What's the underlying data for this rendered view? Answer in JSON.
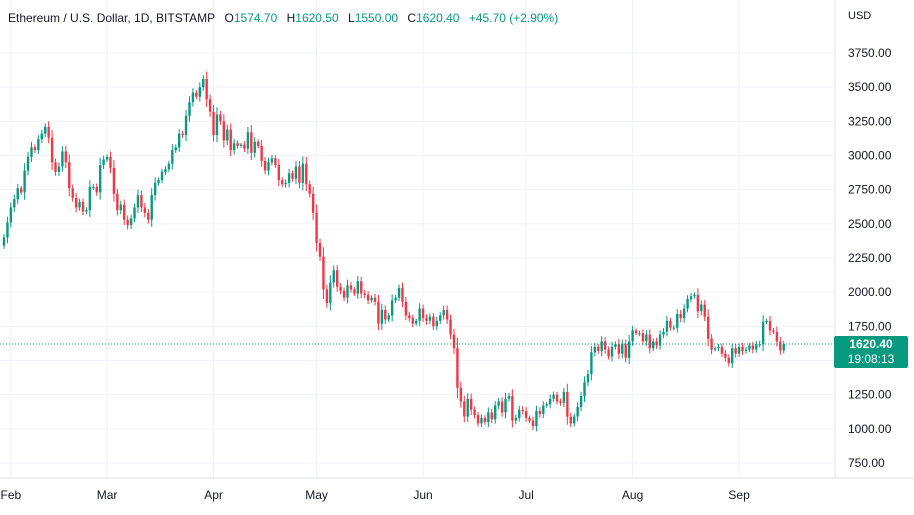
{
  "legend": {
    "symbol": "Ethereum / U.S. Dollar, 1D, BITSTAMP",
    "open_label": "O",
    "open": "1574.70",
    "high_label": "H",
    "high": "1620.50",
    "low_label": "L",
    "low": "1550.00",
    "close_label": "C",
    "close": "1620.40",
    "change": "+45.70 (+2.90%)"
  },
  "axis": {
    "currency": "USD"
  },
  "price_tag": {
    "price": "1620.40",
    "countdown": "19:08:13"
  },
  "colors": {
    "up": "#089981",
    "down": "#f23645",
    "grid": "#f0f3fa",
    "text": "#131722"
  },
  "chart_data": {
    "type": "candlestick",
    "y_ticks": [
      "750.00",
      "1000.00",
      "1250.00",
      "1500.00",
      "1750.00",
      "2000.00",
      "2250.00",
      "2500.00",
      "2750.00",
      "3000.00",
      "3250.00",
      "3500.00",
      "3750.00"
    ],
    "x_ticks": [
      {
        "label": "Feb",
        "index": 2
      },
      {
        "label": "Mar",
        "index": 30
      },
      {
        "label": "Apr",
        "index": 61
      },
      {
        "label": "May",
        "index": 91
      },
      {
        "label": "Jun",
        "index": 122
      },
      {
        "label": "Jul",
        "index": 152
      },
      {
        "label": "Aug",
        "index": 183
      },
      {
        "label": "Sep",
        "index": 214
      }
    ],
    "ylim": [
      600,
      3900
    ],
    "last_price": 1620.4,
    "close": [
      2400,
      2510,
      2620,
      2680,
      2760,
      2730,
      2890,
      2990,
      3060,
      3040,
      3120,
      3160,
      3210,
      3130,
      2950,
      2880,
      2920,
      3030,
      2950,
      2760,
      2690,
      2620,
      2660,
      2590,
      2600,
      2770,
      2770,
      2730,
      2930,
      2970,
      2990,
      2910,
      2720,
      2600,
      2640,
      2530,
      2490,
      2540,
      2620,
      2710,
      2620,
      2580,
      2530,
      2710,
      2800,
      2820,
      2880,
      2900,
      2940,
      3040,
      3060,
      3160,
      3150,
      3290,
      3390,
      3460,
      3430,
      3500,
      3560,
      3410,
      3320,
      3150,
      3300,
      3250,
      3110,
      3190,
      3040,
      3090,
      3070,
      3080,
      3050,
      3170,
      3020,
      3100,
      3070,
      2960,
      2890,
      2950,
      2980,
      2930,
      2820,
      2790,
      2800,
      2870,
      2830,
      2920,
      2800,
      2940,
      2790,
      2720,
      2580,
      2360,
      2260,
      2020,
      1920,
      2070,
      2160,
      2040,
      2010,
      1960,
      2050,
      2020,
      1990,
      2080,
      1990,
      1980,
      1940,
      1960,
      1930,
      1770,
      1870,
      1800,
      1830,
      1940,
      1960,
      2030,
      1930,
      1830,
      1810,
      1770,
      1790,
      1880,
      1810,
      1790,
      1820,
      1750,
      1790,
      1830,
      1870,
      1800,
      1690,
      1590,
      1300,
      1200,
      1090,
      1220,
      1140,
      1100,
      1040,
      1080,
      1050,
      1120,
      1070,
      1170,
      1200,
      1120,
      1220,
      1240,
      1060,
      1080,
      1140,
      1130,
      1080,
      1060,
      1020,
      1130,
      1110,
      1170,
      1180,
      1220,
      1250,
      1200,
      1190,
      1270,
      1090,
      1040,
      1090,
      1160,
      1240,
      1340,
      1400,
      1560,
      1600,
      1570,
      1640,
      1580,
      1530,
      1600,
      1620,
      1550,
      1620,
      1520,
      1640,
      1720,
      1700,
      1700,
      1640,
      1690,
      1590,
      1640,
      1610,
      1690,
      1710,
      1790,
      1740,
      1740,
      1840,
      1810,
      1880,
      1950,
      1970,
      1980,
      1860,
      1910,
      1820,
      1660,
      1580,
      1590,
      1600,
      1550,
      1520,
      1480,
      1590,
      1550,
      1600,
      1570,
      1580,
      1610,
      1580,
      1620,
      1620,
      1780,
      1790,
      1720,
      1710,
      1640,
      1574.7,
      1620.4
    ]
  }
}
